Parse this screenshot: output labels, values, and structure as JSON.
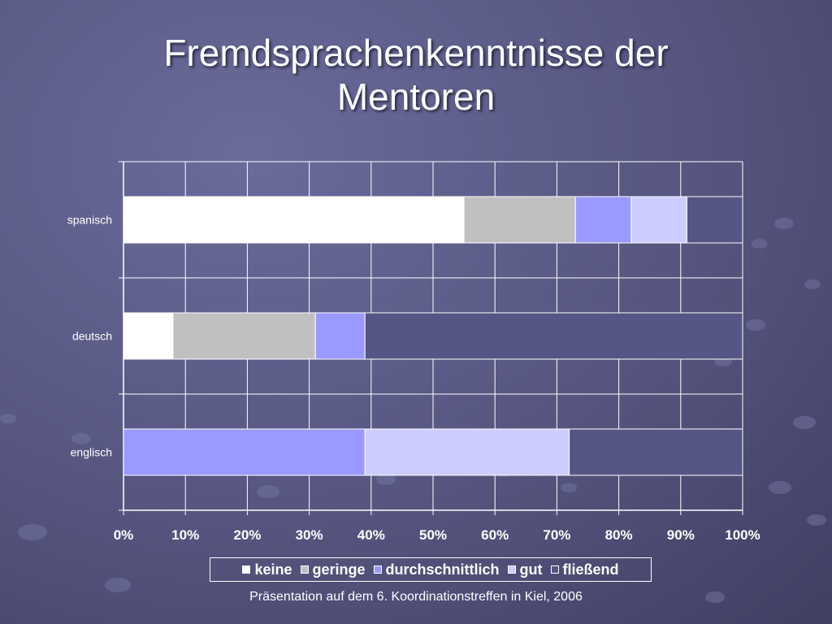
{
  "slide": {
    "title_line1": "Fremdsprachenkenntnisse der",
    "title_line2": "Mentoren",
    "footer": "Präsentation auf dem 6. Koordinationstreffen in Kiel, 2006"
  },
  "chart_data": {
    "type": "bar",
    "orientation": "horizontal",
    "stacked": true,
    "percent": true,
    "categories": [
      "spanisch",
      "deutsch",
      "englisch"
    ],
    "series": [
      {
        "name": "keine",
        "color": "#ffffff",
        "values": [
          55,
          8,
          0
        ]
      },
      {
        "name": "geringe",
        "color": "#c0c0c0",
        "values": [
          18,
          23,
          0
        ]
      },
      {
        "name": "durchschnittlich",
        "color": "#9999ff",
        "values": [
          9,
          8,
          39
        ]
      },
      {
        "name": "gut",
        "color": "#ccccff",
        "values": [
          9,
          0,
          33
        ]
      },
      {
        "name": "fließend",
        "color": "#555586",
        "values": [
          9,
          61,
          28
        ]
      }
    ],
    "x_ticks": [
      "0%",
      "10%",
      "20%",
      "30%",
      "40%",
      "50%",
      "60%",
      "70%",
      "80%",
      "90%",
      "100%"
    ],
    "xlim": [
      0,
      100
    ],
    "grid": true,
    "legend": "bottom"
  }
}
